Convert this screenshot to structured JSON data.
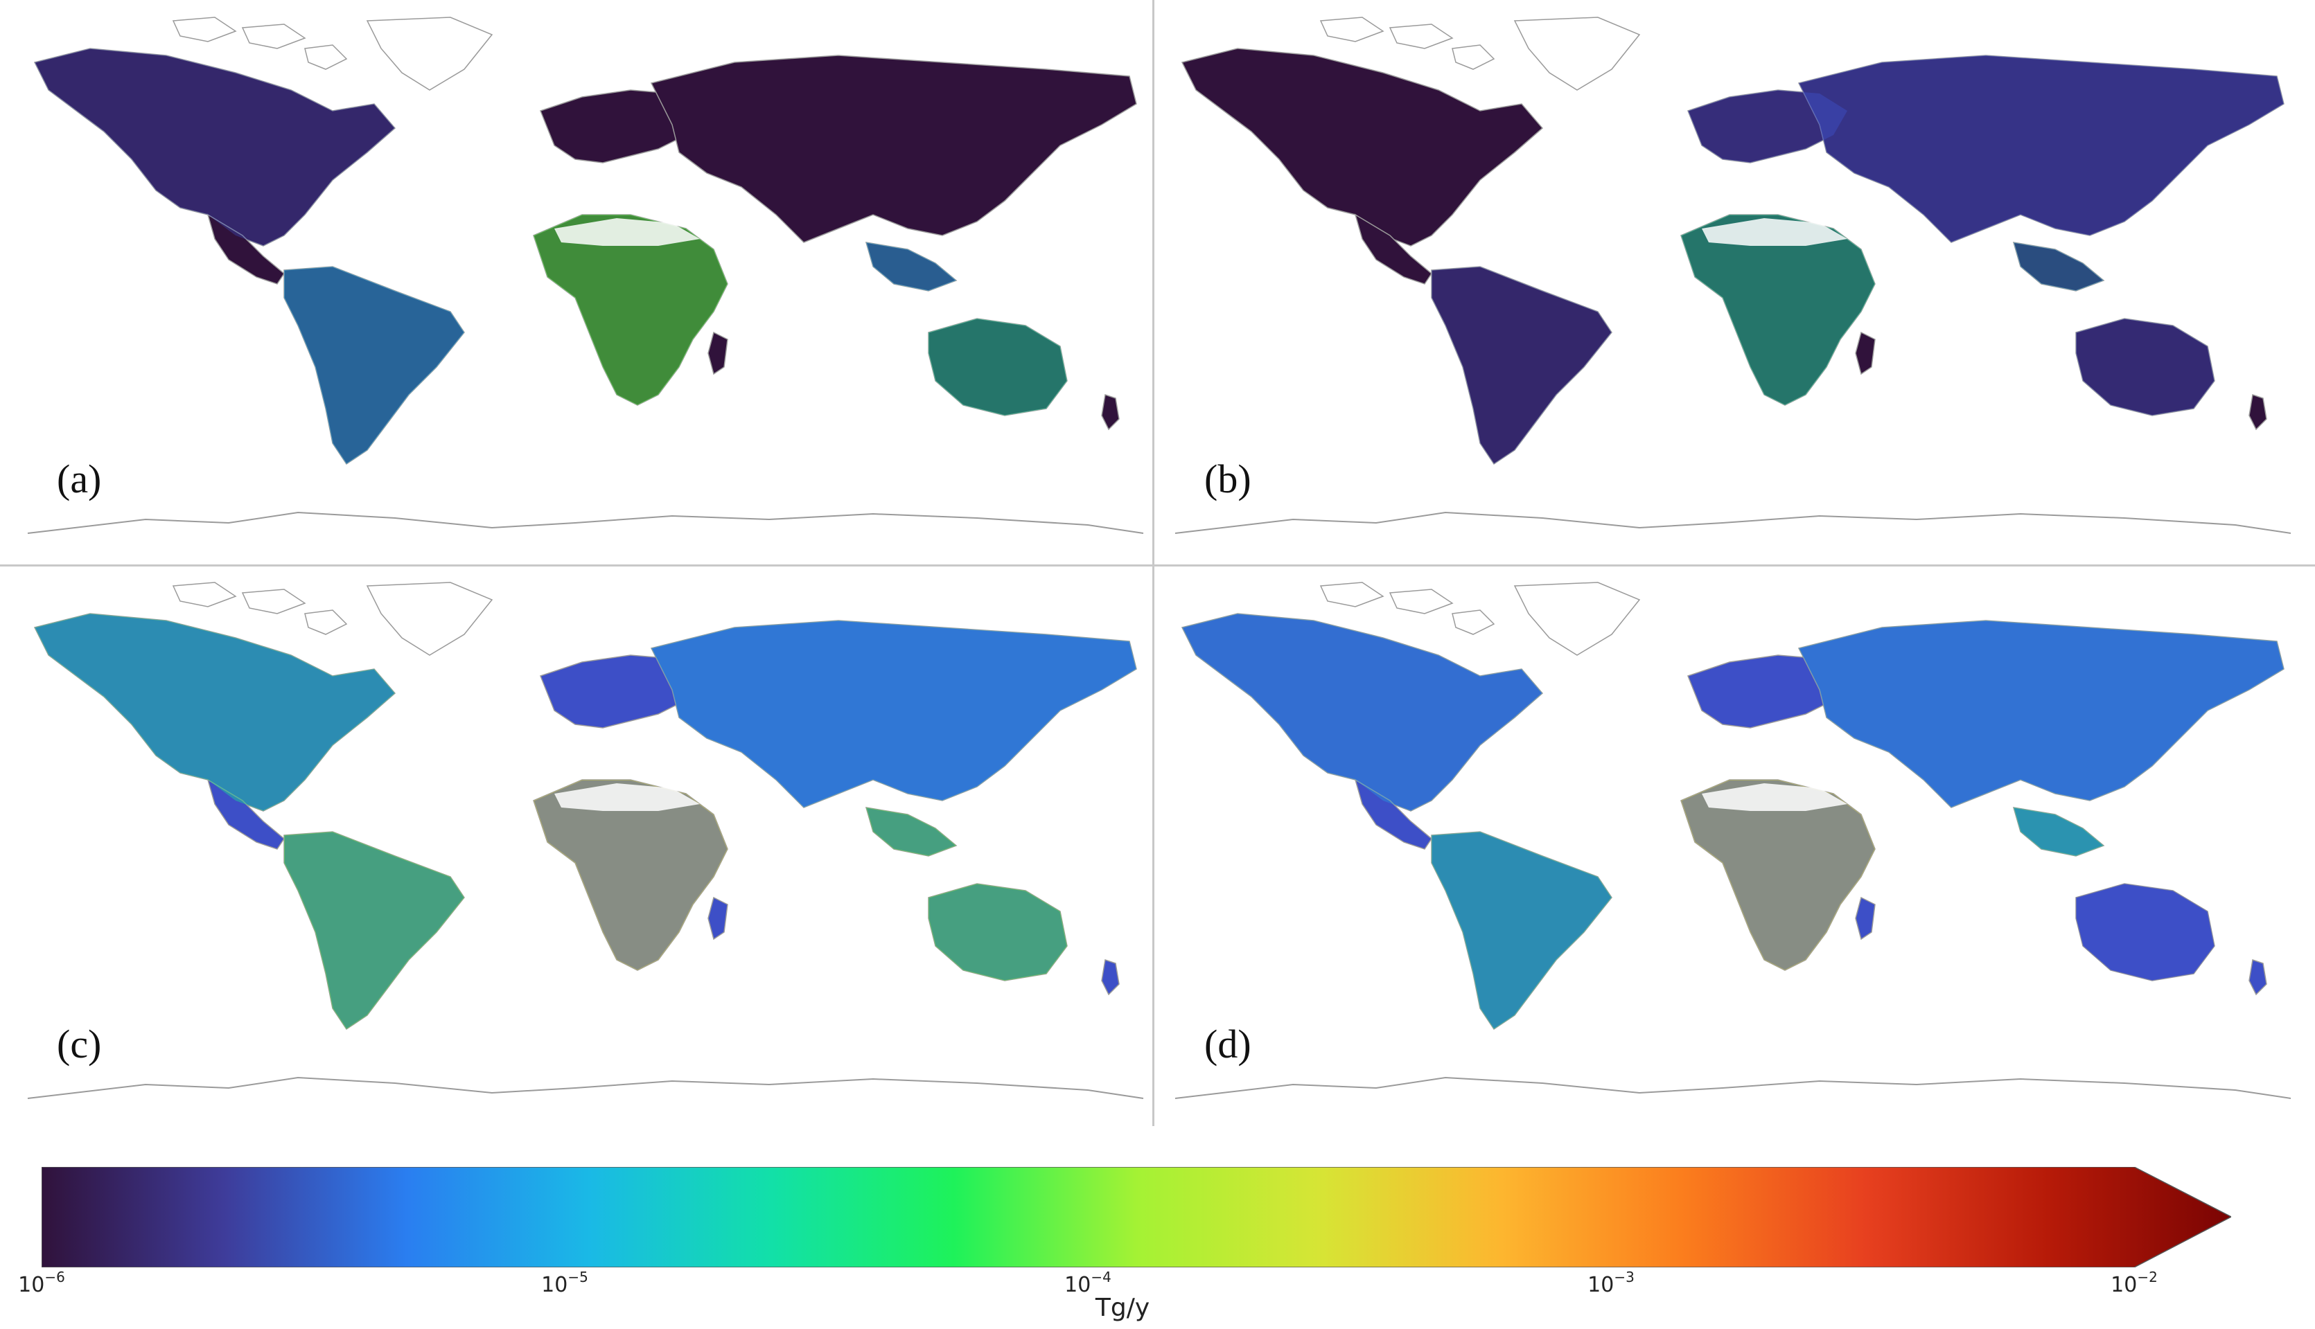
{
  "panels": [
    {
      "id": "a",
      "label": "(a)"
    },
    {
      "id": "b",
      "label": "(b)"
    },
    {
      "id": "c",
      "label": "(c)"
    },
    {
      "id": "d",
      "label": "(d)"
    }
  ],
  "colorbar": {
    "unit": "Tg/y",
    "scale": "log",
    "range": [
      1e-06,
      0.01
    ],
    "extend": "max",
    "colormap": "turbo",
    "ticks": [
      {
        "base": "10",
        "exp": "−6"
      },
      {
        "base": "10",
        "exp": "−5"
      },
      {
        "base": "10",
        "exp": "−4"
      },
      {
        "base": "10",
        "exp": "−3"
      },
      {
        "base": "10",
        "exp": "−2"
      }
    ],
    "colors": [
      "#30123b",
      "#3e3c9a",
      "#2a7ef0",
      "#1ab9e6",
      "#12e0a8",
      "#1ef25a",
      "#a4f234",
      "#d6e535",
      "#fdb62f",
      "#fb7d1d",
      "#e7401f",
      "#b61a08",
      "#7a0403"
    ]
  },
  "land_colors": {
    "low": "#30123b",
    "mid_low": "#3d4fc7",
    "mid": "#22a8e6",
    "mid_high": "#19d79a",
    "high": "#4ff03a",
    "very_high": "#e3d934",
    "coast": "#9a9a9a"
  }
}
